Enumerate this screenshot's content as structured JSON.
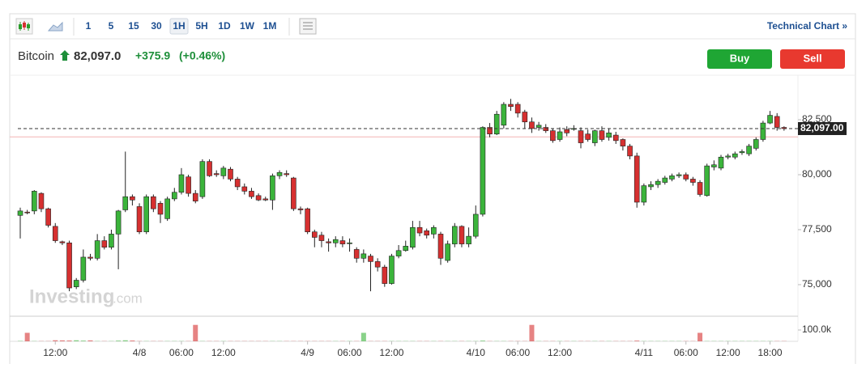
{
  "toolbar": {
    "timeframes": [
      "1",
      "5",
      "15",
      "30",
      "1H",
      "5H",
      "1D",
      "1W",
      "1M"
    ],
    "selected": "1H",
    "link": "Technical Chart »"
  },
  "quote": {
    "name": "Bitcoin",
    "price": "82,097.0",
    "change": "+375.9",
    "change_pct": "(+0.46%)",
    "buy": "Buy",
    "sell": "Sell"
  },
  "watermark": {
    "brand": "Investing",
    "suffix": ".com"
  },
  "chart_data": {
    "type": "candlestick",
    "open": [
      78150,
      78300,
      78350,
      79150,
      78450,
      77650,
      76950,
      76900,
      74900,
      75200,
      76250,
      76200,
      77000,
      76700,
      77300,
      78400,
      79000,
      78550,
      77400,
      79000,
      78700,
      78000,
      78900,
      79200,
      79900,
      79150,
      79000,
      80600,
      80050,
      79950,
      80250,
      79800,
      79450,
      79250,
      79050,
      78900,
      78850,
      79950,
      80050,
      79850,
      78450,
      78450,
      77400,
      77250,
      76950,
      76900,
      77000,
      76900,
      76600,
      76200,
      76300,
      76050,
      75800,
      75050,
      76300,
      76550,
      76700,
      77600,
      77450,
      77300,
      77300,
      76100,
      76850,
      77650,
      76850,
      77200,
      78200,
      82150,
      81850,
      82250,
      83200,
      83200,
      82850,
      82400,
      82150,
      82150,
      82000,
      81600,
      82050,
      82100,
      82000,
      81850,
      81450,
      82000,
      81700,
      81800,
      81600,
      81300,
      80850,
      78750,
      79450,
      79550,
      79650,
      79800,
      79950,
      80000,
      79800,
      79650,
      79050,
      80350,
      80300,
      80800,
      80800,
      81000,
      80950,
      81200,
      81600,
      82350,
      82650,
      82150
    ],
    "high": [
      78500,
      78400,
      79300,
      79200,
      78500,
      77800,
      77000,
      77000,
      75300,
      76600,
      76400,
      77300,
      77200,
      77500,
      78400,
      81050,
      79100,
      78700,
      79100,
      79100,
      78800,
      79000,
      79400,
      80300,
      80000,
      79300,
      80700,
      80700,
      80200,
      80400,
      80350,
      79900,
      79600,
      79400,
      79150,
      79000,
      80050,
      80200,
      80200,
      79900,
      78550,
      78500,
      77500,
      77400,
      77100,
      77200,
      77200,
      77100,
      76700,
      76600,
      76400,
      76200,
      75900,
      76400,
      76800,
      77000,
      77900,
      77900,
      77550,
      77700,
      77400,
      77000,
      77800,
      77700,
      77600,
      78600,
      82200,
      82350,
      82900,
      83300,
      83450,
      83300,
      82950,
      82600,
      82400,
      82300,
      82100,
      82150,
      82200,
      82250,
      82150,
      82050,
      82050,
      82200,
      82100,
      81950,
      81650,
      81400,
      81000,
      79600,
      79700,
      79800,
      79950,
      80050,
      80100,
      80100,
      79900,
      79750,
      80500,
      80650,
      80900,
      80950,
      81050,
      81150,
      81400,
      81700,
      82450,
      82900,
      82800,
      82200
    ],
    "low": [
      77100,
      78200,
      78200,
      78300,
      77600,
      76900,
      76800,
      74700,
      74800,
      75100,
      76100,
      76100,
      76600,
      76600,
      75700,
      78300,
      78600,
      77300,
      77300,
      78300,
      77800,
      77900,
      78800,
      79100,
      79000,
      78700,
      78900,
      79900,
      79900,
      79800,
      79700,
      79300,
      79100,
      78900,
      78800,
      78800,
      78400,
      79800,
      79900,
      78350,
      78200,
      77300,
      76700,
      76700,
      76500,
      76700,
      76700,
      76500,
      76000,
      76000,
      74700,
      75600,
      74900,
      75000,
      76200,
      76500,
      76600,
      77200,
      77100,
      77100,
      75900,
      76000,
      76700,
      76700,
      76700,
      77100,
      78100,
      81700,
      81800,
      82100,
      82900,
      82600,
      82100,
      81900,
      82000,
      81900,
      81450,
      81500,
      81750,
      82000,
      81200,
      81500,
      81300,
      81500,
      81550,
      81400,
      81100,
      80700,
      78500,
      78600,
      79300,
      79400,
      79550,
      79700,
      79850,
      79700,
      79500,
      79000,
      79000,
      80200,
      80200,
      80700,
      80700,
      80900,
      80850,
      81100,
      81500,
      82300,
      82000,
      82000
    ],
    "close": [
      78350,
      78280,
      79250,
      78450,
      77700,
      77000,
      76900,
      74850,
      75200,
      76250,
      76200,
      77000,
      76700,
      77300,
      78350,
      79000,
      78850,
      77400,
      79000,
      78450,
      78200,
      78900,
      79200,
      80000,
      79150,
      78800,
      80600,
      79950,
      80000,
      80300,
      79800,
      79450,
      79250,
      79000,
      78850,
      78850,
      79950,
      80100,
      80000,
      78450,
      78400,
      77400,
      77150,
      77000,
      76900,
      77050,
      76850,
      76900,
      76200,
      76400,
      76050,
      75800,
      75050,
      76300,
      76550,
      76750,
      77600,
      77350,
      77250,
      77600,
      76200,
      76850,
      77650,
      76850,
      77200,
      78200,
      82150,
      81850,
      82750,
      83200,
      83100,
      82800,
      82400,
      82100,
      82250,
      82000,
      81550,
      81950,
      81900,
      82100,
      81450,
      81600,
      82000,
      81600,
      81900,
      81550,
      81300,
      80850,
      78750,
      79500,
      79550,
      79700,
      79850,
      79950,
      80000,
      79800,
      79650,
      79100,
      80400,
      80450,
      80800,
      80850,
      80950,
      81050,
      81300,
      81600,
      82350,
      82700,
      82150,
      82097
    ],
    "volume": [
      3000,
      75000,
      2000,
      2000,
      2000,
      9000,
      8000,
      7000,
      9000,
      6000,
      8000,
      2000,
      2000,
      2000,
      6000,
      9000,
      7000,
      2000,
      2000,
      2000,
      2000,
      2000,
      2000,
      2000,
      2000,
      145000,
      2000,
      2000,
      2000,
      2000,
      2000,
      2000,
      2000,
      2000,
      2000,
      2000,
      2000,
      2000,
      2000,
      2000,
      2000,
      2000,
      2000,
      2000,
      2000,
      2000,
      2000,
      2000,
      2000,
      75000,
      2000,
      2000,
      2000,
      2000,
      2000,
      2000,
      2000,
      2000,
      2000,
      2000,
      2000,
      2000,
      2000,
      2000,
      2000,
      2000,
      6000,
      2000,
      2000,
      2000,
      2000,
      2000,
      2000,
      145000,
      2000,
      2000,
      2000,
      2000,
      2000,
      2000,
      2000,
      2000,
      2000,
      2000,
      2000,
      2000,
      2000,
      2000,
      6000,
      2000,
      2000,
      2000,
      2000,
      2000,
      2000,
      2000,
      2000,
      75000,
      2000,
      2000,
      2000,
      2000,
      2000,
      2000,
      2000,
      2000,
      2000,
      2000,
      2000,
      2000
    ],
    "ylim": [
      73600,
      84450
    ],
    "yticks": [
      {
        "value": 75000,
        "label": "75,000"
      },
      {
        "value": 77500,
        "label": "77,500"
      },
      {
        "value": 80000,
        "label": "80,000"
      },
      {
        "value": 82500,
        "label": "82,500"
      }
    ],
    "volume_ylim": [
      0,
      200000
    ],
    "volume_yticks": [
      {
        "value": 100000,
        "label": "100.0k"
      }
    ],
    "xticks": [
      {
        "value": 5,
        "label": "12:00"
      },
      {
        "value": 17,
        "label": "4/8"
      },
      {
        "value": 23,
        "label": "06:00"
      },
      {
        "value": 29,
        "label": "12:00"
      },
      {
        "value": 41,
        "label": "4/9"
      },
      {
        "value": 47,
        "label": "06:00"
      },
      {
        "value": 53,
        "label": "12:00"
      },
      {
        "value": 65,
        "label": "4/10"
      },
      {
        "value": 71,
        "label": "06:00"
      },
      {
        "value": 77,
        "label": "12:00"
      },
      {
        "value": 89,
        "label": "4/11"
      },
      {
        "value": 95,
        "label": "06:00"
      },
      {
        "value": 101,
        "label": "12:00"
      },
      {
        "value": 107,
        "label": "18:00"
      }
    ],
    "last_price": {
      "value": 82097,
      "label": "82,097.00"
    },
    "reference_line": 81721,
    "up_color": "#3bb43b",
    "down_color": "#d63030"
  }
}
